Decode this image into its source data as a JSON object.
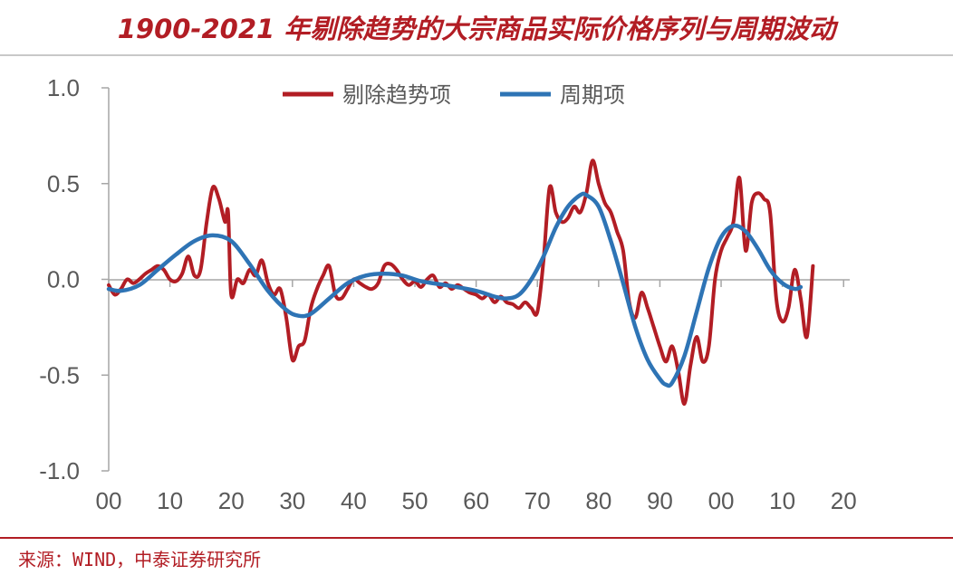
{
  "header": {
    "title": "1900-2021 年剔除趋势的大宗商品实际价格序列与周期波动"
  },
  "footer": {
    "source": "来源：WIND，中泰证券研究所"
  },
  "colors": {
    "detrended": "#b21d24",
    "cycle": "#2e74b5",
    "accent": "#b21d24"
  },
  "chart_data": {
    "type": "line",
    "title": "1900-2021 年剔除趋势的大宗商品实际价格序列与周期波动",
    "xlabel": "",
    "ylabel": "",
    "xlim": [
      1900,
      2021
    ],
    "ylim": [
      -1.0,
      1.0
    ],
    "yticks": [
      1.0,
      0.5,
      0.0,
      -0.5,
      -1.0
    ],
    "ytick_labels": [
      "1.0",
      "0.5",
      "0.0",
      "-0.5",
      "-1.0"
    ],
    "xticks": [
      1900,
      1910,
      1920,
      1930,
      1940,
      1950,
      1960,
      1970,
      1980,
      1990,
      2000,
      2010,
      2020
    ],
    "xtick_labels": [
      "00",
      "10",
      "20",
      "30",
      "40",
      "50",
      "60",
      "70",
      "80",
      "90",
      "00",
      "10",
      "20"
    ],
    "grid": false,
    "legend_position": "top-center",
    "series": [
      {
        "name": "剔除趋势项",
        "color": "#b21d24",
        "points": [
          [
            1900,
            -0.03
          ],
          [
            1901,
            -0.08
          ],
          [
            1902,
            -0.05
          ],
          [
            1903,
            0.0
          ],
          [
            1904,
            -0.02
          ],
          [
            1905,
            0.0
          ],
          [
            1906,
            0.03
          ],
          [
            1907,
            0.05
          ],
          [
            1908,
            0.07
          ],
          [
            1909,
            0.05
          ],
          [
            1910,
            0.0
          ],
          [
            1911,
            -0.01
          ],
          [
            1912,
            0.03
          ],
          [
            1913,
            0.12
          ],
          [
            1914,
            0.02
          ],
          [
            1915,
            0.05
          ],
          [
            1916,
            0.3
          ],
          [
            1917,
            0.48
          ],
          [
            1918,
            0.42
          ],
          [
            1919,
            0.3
          ],
          [
            1919.5,
            0.35
          ],
          [
            1920,
            -0.08
          ],
          [
            1921,
            0.0
          ],
          [
            1922,
            -0.02
          ],
          [
            1923,
            0.05
          ],
          [
            1924,
            0.02
          ],
          [
            1925,
            0.1
          ],
          [
            1926,
            -0.02
          ],
          [
            1927,
            -0.08
          ],
          [
            1928,
            -0.05
          ],
          [
            1929,
            -0.2
          ],
          [
            1930,
            -0.42
          ],
          [
            1931,
            -0.35
          ],
          [
            1932,
            -0.32
          ],
          [
            1933,
            -0.15
          ],
          [
            1934,
            -0.05
          ],
          [
            1935,
            0.02
          ],
          [
            1936,
            0.07
          ],
          [
            1937,
            -0.08
          ],
          [
            1938,
            -0.1
          ],
          [
            1939,
            -0.05
          ],
          [
            1940,
            0.0
          ],
          [
            1941,
            -0.02
          ],
          [
            1942,
            -0.04
          ],
          [
            1943,
            -0.05
          ],
          [
            1944,
            -0.02
          ],
          [
            1945,
            0.07
          ],
          [
            1946,
            0.08
          ],
          [
            1947,
            0.05
          ],
          [
            1948,
            0.0
          ],
          [
            1949,
            -0.03
          ],
          [
            1950,
            -0.01
          ],
          [
            1951,
            -0.04
          ],
          [
            1952,
            0.0
          ],
          [
            1953,
            0.02
          ],
          [
            1954,
            -0.04
          ],
          [
            1955,
            -0.02
          ],
          [
            1956,
            -0.05
          ],
          [
            1957,
            -0.03
          ],
          [
            1958,
            -0.05
          ],
          [
            1959,
            -0.07
          ],
          [
            1960,
            -0.08
          ],
          [
            1961,
            -0.1
          ],
          [
            1962,
            -0.08
          ],
          [
            1963,
            -0.12
          ],
          [
            1964,
            -0.09
          ],
          [
            1965,
            -0.12
          ],
          [
            1966,
            -0.13
          ],
          [
            1967,
            -0.15
          ],
          [
            1968,
            -0.12
          ],
          [
            1969,
            -0.15
          ],
          [
            1970,
            -0.17
          ],
          [
            1971,
            0.1
          ],
          [
            1972,
            0.48
          ],
          [
            1973,
            0.35
          ],
          [
            1974,
            0.3
          ],
          [
            1975,
            0.32
          ],
          [
            1976,
            0.38
          ],
          [
            1977,
            0.35
          ],
          [
            1978,
            0.45
          ],
          [
            1979,
            0.62
          ],
          [
            1980,
            0.5
          ],
          [
            1981,
            0.4
          ],
          [
            1982,
            0.35
          ],
          [
            1983,
            0.25
          ],
          [
            1984,
            0.15
          ],
          [
            1985,
            -0.12
          ],
          [
            1986,
            -0.2
          ],
          [
            1987,
            -0.07
          ],
          [
            1988,
            -0.15
          ],
          [
            1989,
            -0.25
          ],
          [
            1990,
            -0.35
          ],
          [
            1991,
            -0.43
          ],
          [
            1992,
            -0.35
          ],
          [
            1993,
            -0.48
          ],
          [
            1994,
            -0.65
          ],
          [
            1995,
            -0.45
          ],
          [
            1996,
            -0.3
          ],
          [
            1997,
            -0.43
          ],
          [
            1998,
            -0.35
          ],
          [
            1999,
            0.0
          ],
          [
            2000,
            0.15
          ],
          [
            2001,
            0.22
          ],
          [
            2002,
            0.3
          ],
          [
            2003,
            0.53
          ],
          [
            2004,
            0.15
          ],
          [
            2005,
            0.4
          ],
          [
            2006,
            0.45
          ],
          [
            2007,
            0.42
          ],
          [
            2008,
            0.35
          ],
          [
            2009,
            -0.1
          ],
          [
            2010,
            -0.22
          ],
          [
            2011,
            -0.15
          ],
          [
            2012,
            0.05
          ],
          [
            2013,
            -0.1
          ],
          [
            2014,
            -0.3
          ],
          [
            2015,
            0.07
          ]
        ]
      },
      {
        "name": "周期项",
        "color": "#2e74b5",
        "points": [
          [
            1900,
            -0.05
          ],
          [
            1902,
            -0.06
          ],
          [
            1905,
            -0.03
          ],
          [
            1908,
            0.05
          ],
          [
            1911,
            0.13
          ],
          [
            1914,
            0.2
          ],
          [
            1917,
            0.23
          ],
          [
            1920,
            0.2
          ],
          [
            1923,
            0.08
          ],
          [
            1926,
            -0.06
          ],
          [
            1929,
            -0.16
          ],
          [
            1931,
            -0.19
          ],
          [
            1933,
            -0.18
          ],
          [
            1936,
            -0.1
          ],
          [
            1939,
            -0.02
          ],
          [
            1942,
            0.02
          ],
          [
            1945,
            0.03
          ],
          [
            1948,
            0.02
          ],
          [
            1951,
            -0.01
          ],
          [
            1955,
            -0.03
          ],
          [
            1960,
            -0.06
          ],
          [
            1963,
            -0.09
          ],
          [
            1965,
            -0.1
          ],
          [
            1967,
            -0.08
          ],
          [
            1969,
            0.0
          ],
          [
            1971,
            0.12
          ],
          [
            1973,
            0.27
          ],
          [
            1975,
            0.38
          ],
          [
            1977,
            0.44
          ],
          [
            1978,
            0.44
          ],
          [
            1980,
            0.38
          ],
          [
            1982,
            0.2
          ],
          [
            1984,
            -0.02
          ],
          [
            1986,
            -0.25
          ],
          [
            1988,
            -0.42
          ],
          [
            1990,
            -0.52
          ],
          [
            1991,
            -0.55
          ],
          [
            1992,
            -0.54
          ],
          [
            1994,
            -0.4
          ],
          [
            1996,
            -0.17
          ],
          [
            1998,
            0.06
          ],
          [
            2000,
            0.22
          ],
          [
            2002,
            0.28
          ],
          [
            2004,
            0.25
          ],
          [
            2006,
            0.16
          ],
          [
            2008,
            0.05
          ],
          [
            2010,
            -0.02
          ],
          [
            2012,
            -0.05
          ],
          [
            2013,
            -0.04
          ]
        ]
      }
    ]
  }
}
